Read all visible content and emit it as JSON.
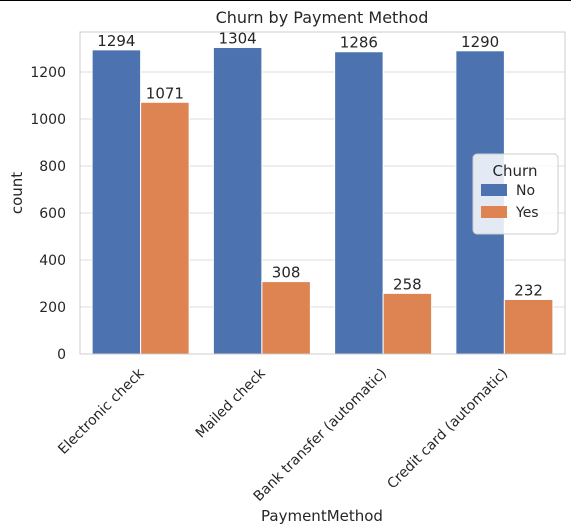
{
  "chart_data": {
    "type": "bar",
    "title": "Churn by Payment Method",
    "xlabel": "PaymentMethod",
    "ylabel": "count",
    "categories": [
      "Electronic check",
      "Mailed check",
      "Bank transfer (automatic)",
      "Credit card (automatic)"
    ],
    "series": [
      {
        "name": "No",
        "values": [
          1294,
          1304,
          1286,
          1290
        ],
        "color": "#4c72b0"
      },
      {
        "name": "Yes",
        "values": [
          1071,
          308,
          258,
          232
        ],
        "color": "#dd8452"
      }
    ],
    "ylim": [
      0,
      1370
    ],
    "yticks": [
      0,
      200,
      400,
      600,
      800,
      1000,
      1200
    ],
    "grid": true,
    "legend": {
      "title": "Churn",
      "placement": "center-right"
    },
    "background": "#ffffff",
    "grid_color": "#dddddd",
    "frame_color": "#cccccc"
  }
}
